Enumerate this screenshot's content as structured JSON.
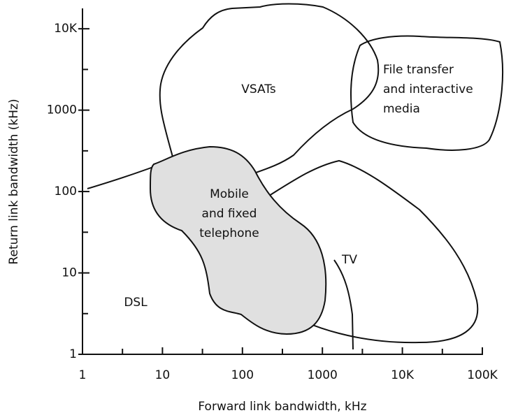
{
  "chart_data": {
    "type": "region",
    "xlabel": "Forward link bandwidth, kHz",
    "ylabel": "Return link bandwidth (kHz)",
    "xscale": "log",
    "yscale": "log",
    "xlim": [
      1,
      100000
    ],
    "ylim": [
      1,
      17800
    ],
    "xticks": [
      1,
      10,
      100,
      1000,
      {
        "value": 10000,
        "label": "10K"
      },
      {
        "value": 100000,
        "label": "100K"
      }
    ],
    "yticks": [
      1,
      10,
      100,
      1000,
      {
        "value": 10000,
        "label": "10K"
      }
    ],
    "annotations": [
      {
        "lines": [
          "VSATs"
        ]
      },
      {
        "lines": [
          "File transfer",
          "and interactive",
          "media"
        ]
      },
      {
        "lines": [
          "Mobile",
          "and fixed",
          "telephone"
        ]
      },
      {
        "lines": [
          "TV"
        ]
      },
      {
        "lines": [
          "DSL"
        ]
      }
    ]
  }
}
